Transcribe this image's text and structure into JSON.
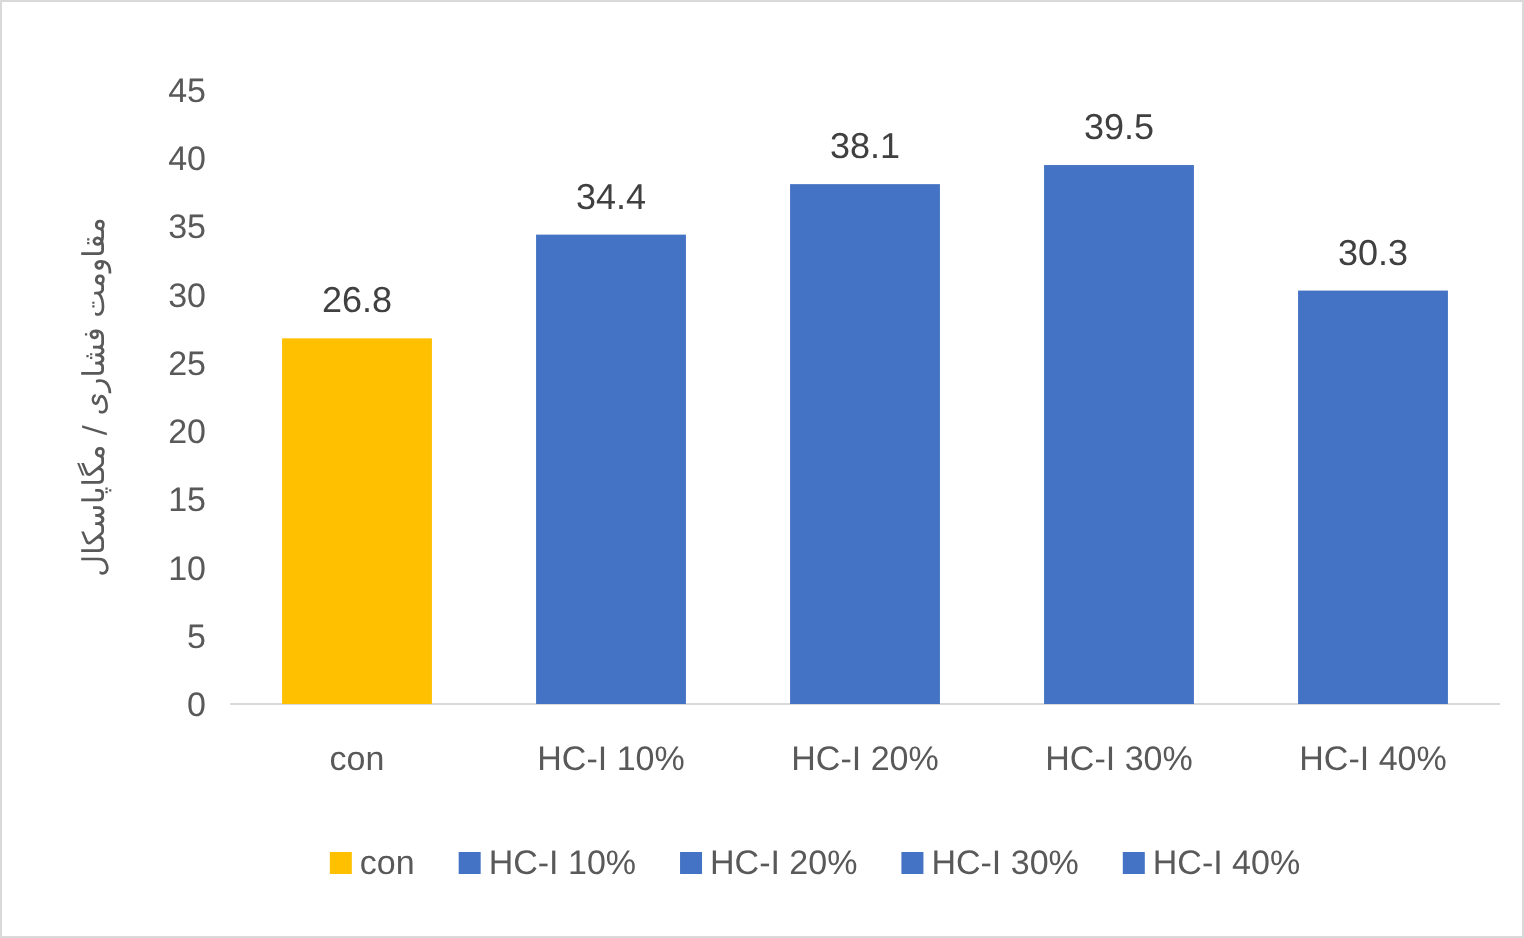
{
  "chart_data": {
    "type": "bar",
    "ylabel": "مقاومت فشاری / مگاپاسکال",
    "categories": [
      "con",
      "HC-I 10%",
      "HC-I 20%",
      "HC-I 30%",
      "HC-I 40%"
    ],
    "stacked": true,
    "series": [
      {
        "name": "con",
        "color": "#ffc000",
        "values": [
          26.8,
          null,
          null,
          null,
          null
        ]
      },
      {
        "name": "HC-I 10%",
        "color": "#4472c4",
        "values": [
          null,
          34.4,
          null,
          null,
          null
        ]
      },
      {
        "name": "HC-I 20%",
        "color": "#4472c4",
        "values": [
          null,
          null,
          38.1,
          null,
          null
        ]
      },
      {
        "name": "HC-I 30%",
        "color": "#4472c4",
        "values": [
          null,
          null,
          null,
          39.5,
          null
        ]
      },
      {
        "name": "HC-I 40%",
        "color": "#4472c4",
        "values": [
          null,
          null,
          null,
          null,
          30.3
        ]
      }
    ],
    "ylim": [
      0,
      45
    ],
    "yticks": [
      0,
      5,
      10,
      15,
      20,
      25,
      30,
      35,
      40,
      45
    ],
    "data_labels": true,
    "legend": "bottom",
    "grid": false
  }
}
